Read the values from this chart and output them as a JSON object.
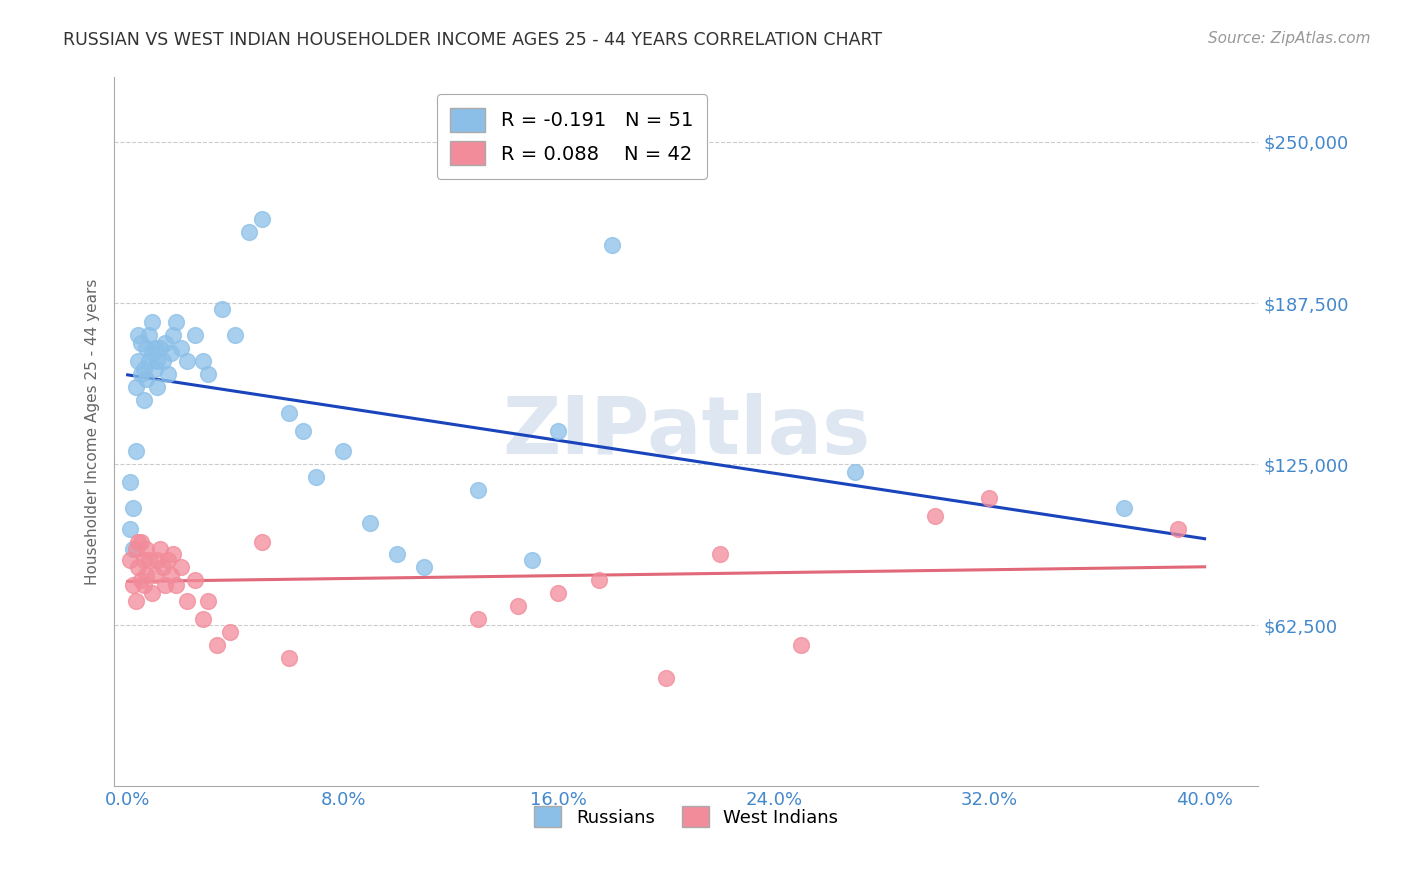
{
  "title": "RUSSIAN VS WEST INDIAN HOUSEHOLDER INCOME AGES 25 - 44 YEARS CORRELATION CHART",
  "source": "Source: ZipAtlas.com",
  "xlabel_ticks": [
    "0.0%",
    "8.0%",
    "16.0%",
    "24.0%",
    "32.0%",
    "40.0%"
  ],
  "xlabel_vals": [
    0.0,
    0.08,
    0.16,
    0.24,
    0.32,
    0.4
  ],
  "ylabel": "Householder Income Ages 25 - 44 years",
  "ylabel_ticks": [
    "$250,000",
    "$187,500",
    "$125,000",
    "$62,500"
  ],
  "ylabel_vals": [
    250000,
    187500,
    125000,
    62500
  ],
  "ylim": [
    0,
    275000
  ],
  "xlim": [
    -0.005,
    0.42
  ],
  "legend_r_russian": "R = -0.191",
  "legend_n_russian": "N = 51",
  "legend_r_westindian": "R = 0.088",
  "legend_n_westindian": "N = 42",
  "russian_color": "#8bbfe8",
  "westindian_color": "#f28b9a",
  "russian_line_color": "#1a44bb",
  "westindian_line_color": "#e06878",
  "background_color": "#ffffff",
  "grid_color": "#cccccc",
  "axis_label_color": "#4488cc",
  "watermark": "ZIPatlas",
  "russians_x": [
    0.001,
    0.001,
    0.002,
    0.002,
    0.003,
    0.003,
    0.004,
    0.004,
    0.005,
    0.005,
    0.006,
    0.006,
    0.007,
    0.007,
    0.008,
    0.008,
    0.009,
    0.009,
    0.01,
    0.01,
    0.011,
    0.011,
    0.012,
    0.013,
    0.014,
    0.015,
    0.016,
    0.017,
    0.018,
    0.02,
    0.022,
    0.025,
    0.028,
    0.03,
    0.035,
    0.04,
    0.045,
    0.05,
    0.06,
    0.065,
    0.07,
    0.08,
    0.09,
    0.1,
    0.11,
    0.13,
    0.15,
    0.16,
    0.18,
    0.27,
    0.37
  ],
  "russians_y": [
    100000,
    118000,
    92000,
    108000,
    130000,
    155000,
    165000,
    175000,
    160000,
    172000,
    150000,
    162000,
    158000,
    170000,
    165000,
    175000,
    168000,
    180000,
    162000,
    170000,
    155000,
    165000,
    170000,
    165000,
    172000,
    160000,
    168000,
    175000,
    180000,
    170000,
    165000,
    175000,
    165000,
    160000,
    185000,
    175000,
    215000,
    220000,
    145000,
    138000,
    120000,
    130000,
    102000,
    90000,
    85000,
    115000,
    88000,
    138000,
    210000,
    122000,
    108000
  ],
  "westindians_x": [
    0.001,
    0.002,
    0.003,
    0.003,
    0.004,
    0.004,
    0.005,
    0.005,
    0.006,
    0.006,
    0.007,
    0.007,
    0.008,
    0.009,
    0.01,
    0.011,
    0.012,
    0.013,
    0.014,
    0.015,
    0.016,
    0.017,
    0.018,
    0.02,
    0.022,
    0.025,
    0.028,
    0.03,
    0.033,
    0.038,
    0.05,
    0.06,
    0.13,
    0.145,
    0.16,
    0.175,
    0.2,
    0.22,
    0.25,
    0.3,
    0.32,
    0.39
  ],
  "westindians_y": [
    88000,
    78000,
    92000,
    72000,
    85000,
    95000,
    80000,
    95000,
    88000,
    78000,
    92000,
    82000,
    88000,
    75000,
    82000,
    88000,
    92000,
    85000,
    78000,
    88000,
    82000,
    90000,
    78000,
    85000,
    72000,
    80000,
    65000,
    72000,
    55000,
    60000,
    95000,
    50000,
    65000,
    70000,
    75000,
    80000,
    42000,
    90000,
    55000,
    105000,
    112000,
    100000
  ]
}
